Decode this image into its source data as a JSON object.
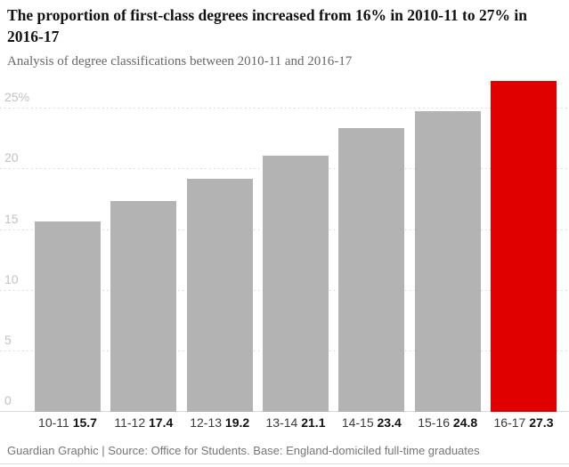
{
  "header": {
    "title": "The proportion of first-class degrees increased from 16% in 2010-11 to 27% in 2016-17",
    "subtitle": "Analysis of degree classifications between 2010-11 and 2016-17"
  },
  "chart_data": {
    "type": "bar",
    "title": "The proportion of first-class degrees increased from 16% in 2010-11 to 27% in 2016-17",
    "subtitle": "Analysis of degree classifications between 2010-11 and 2016-17",
    "categories": [
      "10-11",
      "11-12",
      "12-13",
      "13-14",
      "14-15",
      "15-16",
      "16-17"
    ],
    "values": [
      15.7,
      17.4,
      19.2,
      21.1,
      23.4,
      24.8,
      27.3
    ],
    "value_labels": [
      "15.7",
      "17.4",
      "19.2",
      "21.1",
      "23.4",
      "24.8",
      "27.3"
    ],
    "highlight_index": 6,
    "xlabel": "",
    "ylabel": "",
    "ylim": [
      0,
      27.5
    ],
    "y_ticks": [
      0,
      5,
      10,
      15,
      20,
      25
    ],
    "y_tick_labels": [
      "0",
      "5",
      "10",
      "15",
      "20",
      "25%"
    ],
    "grid": "dotted-horizontal",
    "legend": "none",
    "colors": {
      "bar": "#b3b3b3",
      "highlight": "#e00000",
      "gridline": "#d4d4d4",
      "axis_line": "#d9d9d9",
      "y_tick_text": "#c2c2c2",
      "x_tick_text": "#3a3a3a",
      "title_text": "#121212",
      "muted_text": "#676767"
    }
  },
  "footer": {
    "credit": "Guardian Graphic | Source: Office for Students. Base: England-domiciled full-time graduates"
  }
}
